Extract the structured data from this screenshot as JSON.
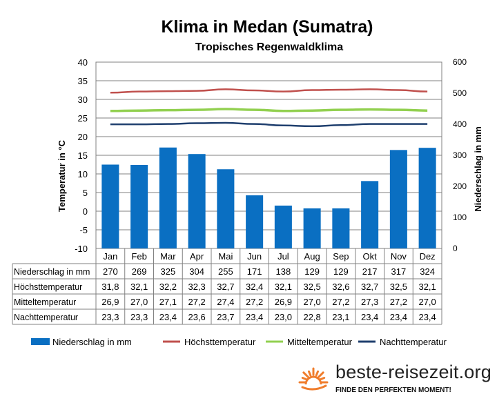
{
  "chart_data": {
    "type": "bar+line",
    "title": "Klima in Medan (Sumatra)",
    "subtitle": "Tropisches  Regenwaldklima",
    "ylabel_left": "Temperatur in °C",
    "ylabel_right": "Niederschlag in mm",
    "ylim_left": [
      -10,
      40
    ],
    "ylim_right": [
      0,
      600
    ],
    "yticks_left": [
      "-10",
      "-5",
      "0",
      "5",
      "10",
      "15",
      "20",
      "25",
      "30",
      "35",
      "40"
    ],
    "yticks_right": [
      "0",
      "100",
      "200",
      "300",
      "400",
      "500",
      "600"
    ],
    "grid": true,
    "legend_position": "bottom",
    "categories": [
      "Jan",
      "Feb",
      "Mar",
      "Apr",
      "Mai",
      "Jun",
      "Jul",
      "Aug",
      "Sep",
      "Okt",
      "Nov",
      "Dez"
    ],
    "series": [
      {
        "name": "Niederschlag in mm",
        "type": "bar",
        "axis": "right",
        "color": "#0a6fc2",
        "values": [
          270,
          269,
          325,
          304,
          255,
          171,
          138,
          129,
          129,
          217,
          317,
          324
        ],
        "labels": [
          "270",
          "269",
          "325",
          "304",
          "255",
          "171",
          "138",
          "129",
          "129",
          "217",
          "317",
          "324"
        ]
      },
      {
        "name": "Höchsttemperatur",
        "type": "line",
        "axis": "left",
        "color": "#c0504d",
        "values": [
          31.8,
          32.1,
          32.2,
          32.3,
          32.7,
          32.4,
          32.1,
          32.5,
          32.6,
          32.7,
          32.5,
          32.1
        ],
        "labels": [
          "31,8",
          "32,1",
          "32,2",
          "32,3",
          "32,7",
          "32,4",
          "32,1",
          "32,5",
          "32,6",
          "32,7",
          "32,5",
          "32,1"
        ]
      },
      {
        "name": "Mitteltemperatur",
        "type": "line",
        "axis": "left",
        "color": "#92d050",
        "values": [
          26.9,
          27.0,
          27.1,
          27.2,
          27.4,
          27.2,
          26.9,
          27.0,
          27.2,
          27.3,
          27.2,
          27.0
        ],
        "labels": [
          "26,9",
          "27,0",
          "27,1",
          "27,2",
          "27,4",
          "27,2",
          "26,9",
          "27,0",
          "27,2",
          "27,3",
          "27,2",
          "27,0"
        ]
      },
      {
        "name": "Nachttemperatur",
        "type": "line",
        "axis": "left",
        "color": "#1f3f6e",
        "values": [
          23.3,
          23.3,
          23.4,
          23.6,
          23.7,
          23.4,
          23.0,
          22.8,
          23.1,
          23.4,
          23.4,
          23.4
        ],
        "labels": [
          "23,3",
          "23,3",
          "23,4",
          "23,6",
          "23,7",
          "23,4",
          "23,0",
          "22,8",
          "23,1",
          "23,4",
          "23,4",
          "23,4"
        ]
      }
    ]
  },
  "branding": {
    "name": "beste-reisezeit.org",
    "tagline": "FINDE DEN PERFEKTEN MOMENT!",
    "logo_icon": "sun-icon",
    "logo_color": "#f07d2c"
  }
}
